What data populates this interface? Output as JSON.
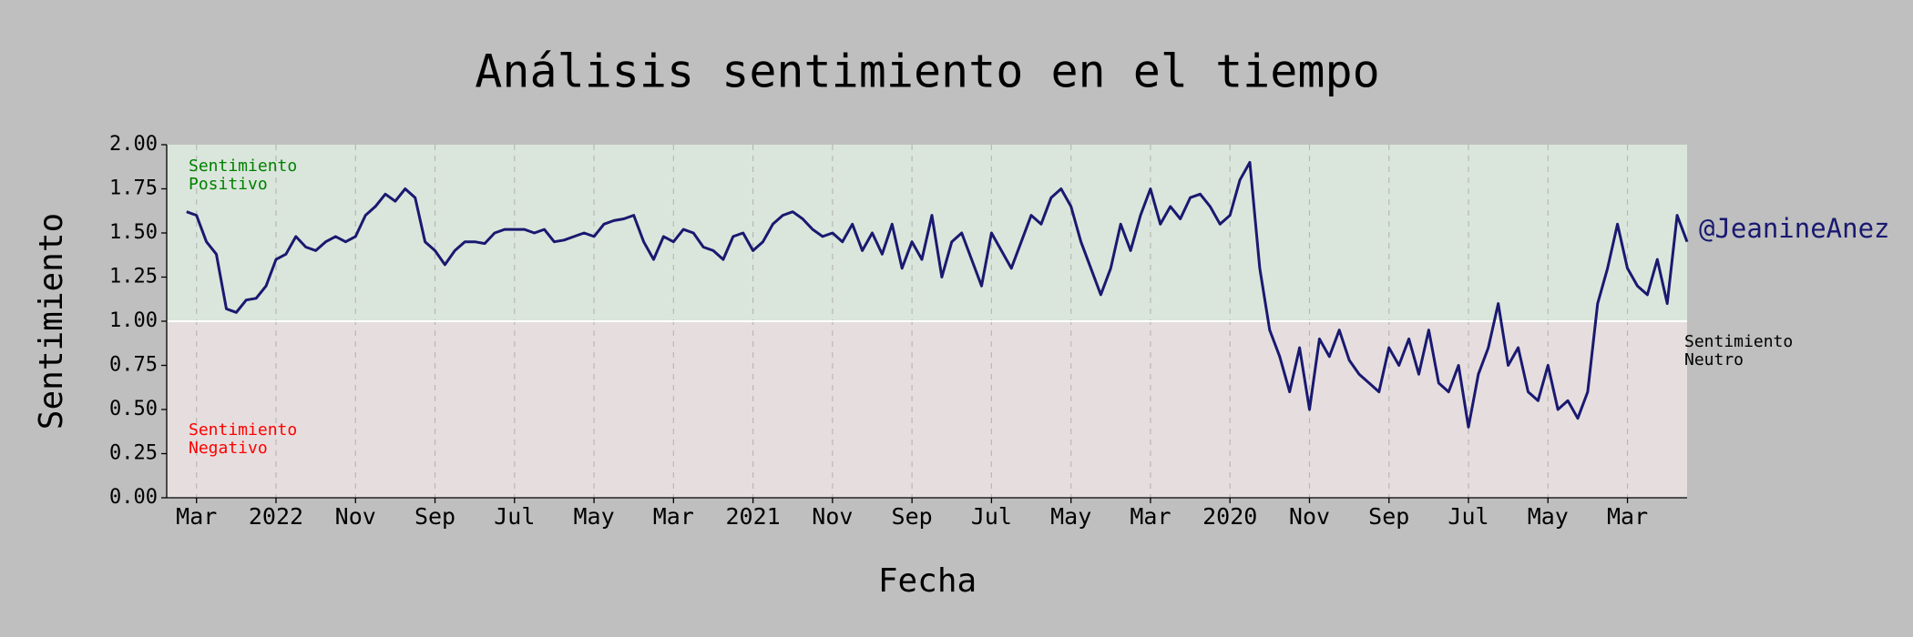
{
  "chart_data": {
    "type": "line",
    "title": "Análisis sentimiento en el tiempo",
    "xlabel": "Fecha",
    "ylabel": "Sentimiento",
    "categories": [
      null,
      null,
      null,
      "Mar",
      null,
      null,
      null,
      null,
      null,
      null,
      null,
      "2022",
      null,
      null,
      null,
      null,
      null,
      null,
      null,
      "Nov",
      null,
      null,
      null,
      null,
      null,
      null,
      null,
      "Sep",
      null,
      null,
      null,
      null,
      null,
      null,
      null,
      "Jul",
      null,
      null,
      null,
      null,
      null,
      null,
      null,
      "May",
      null,
      null,
      null,
      null,
      null,
      null,
      null,
      "Mar",
      null,
      null,
      null,
      null,
      null,
      null,
      null,
      "2021",
      null,
      null,
      null,
      null,
      null,
      null,
      null,
      "Nov",
      null,
      null,
      null,
      null,
      null,
      null,
      null,
      "Sep",
      null,
      null,
      null,
      null,
      null,
      null,
      null,
      "Jul",
      null,
      null,
      null,
      null,
      null,
      null,
      null,
      "May",
      null,
      null,
      null,
      null,
      null,
      null,
      null,
      "Mar",
      null,
      null,
      null,
      null,
      null,
      null,
      null,
      "2020",
      null,
      null,
      null,
      null,
      null,
      null,
      null,
      "Nov",
      null,
      null,
      null,
      null,
      null,
      null,
      null,
      "Sep",
      null,
      null,
      null,
      null,
      null,
      null,
      null,
      "Jul",
      null,
      null,
      null,
      null,
      null,
      null,
      null,
      "May",
      null,
      null,
      null,
      null,
      null,
      null,
      null,
      "Mar",
      null,
      null,
      null,
      null,
      null,
      null
    ],
    "series": [
      {
        "name": "@JeanineAnez",
        "color": "#191970",
        "values": [
          null,
          null,
          1.62,
          1.6,
          1.45,
          1.38,
          1.07,
          1.05,
          1.12,
          1.13,
          1.2,
          1.35,
          1.38,
          1.48,
          1.42,
          1.4,
          1.45,
          1.48,
          1.45,
          1.48,
          1.6,
          1.65,
          1.72,
          1.68,
          1.75,
          1.7,
          1.45,
          1.4,
          1.32,
          1.4,
          1.45,
          1.45,
          1.44,
          1.5,
          1.52,
          1.52,
          1.52,
          1.5,
          1.52,
          1.45,
          1.46,
          1.48,
          1.5,
          1.48,
          1.55,
          1.57,
          1.58,
          1.6,
          1.45,
          1.35,
          1.48,
          1.45,
          1.52,
          1.5,
          1.42,
          1.4,
          1.35,
          1.48,
          1.5,
          1.4,
          1.45,
          1.55,
          1.6,
          1.62,
          1.58,
          1.52,
          1.48,
          1.5,
          1.45,
          1.55,
          1.4,
          1.5,
          1.38,
          1.55,
          1.3,
          1.45,
          1.35,
          1.6,
          1.25,
          1.45,
          1.5,
          1.35,
          1.2,
          1.5,
          1.4,
          1.3,
          1.45,
          1.6,
          1.55,
          1.7,
          1.75,
          1.65,
          1.45,
          1.3,
          1.15,
          1.3,
          1.55,
          1.4,
          1.6,
          1.75,
          1.55,
          1.65,
          1.58,
          1.7,
          1.72,
          1.65,
          1.55,
          1.6,
          1.8,
          1.9,
          1.3,
          0.95,
          0.8,
          0.6,
          0.85,
          0.5,
          0.9,
          0.8,
          0.95,
          0.78,
          0.7,
          0.65,
          0.6,
          0.85,
          0.75,
          0.9,
          0.7,
          0.95,
          0.65,
          0.6,
          0.75,
          0.4,
          0.7,
          0.85,
          1.1,
          0.75,
          0.85,
          0.6,
          0.55,
          0.75,
          0.5,
          0.55,
          0.45,
          0.6,
          1.1,
          1.3,
          1.55,
          1.3,
          1.2,
          1.15,
          1.35,
          1.1,
          1.6,
          1.45
        ]
      }
    ],
    "ylim": [
      0,
      2
    ],
    "yticks": [
      {
        "value": 0,
        "label": "0.00"
      },
      {
        "value": 0.25,
        "label": "0.25"
      },
      {
        "value": 0.5,
        "label": "0.50"
      },
      {
        "value": 0.75,
        "label": "0.75"
      },
      {
        "value": 1,
        "label": "1.00"
      },
      {
        "value": 1.25,
        "label": "1.25"
      },
      {
        "value": 1.5,
        "label": "1.50"
      },
      {
        "value": 1.75,
        "label": "1.75"
      },
      {
        "value": 2,
        "label": "2.00"
      }
    ],
    "threshold": 1,
    "positive_color": "#dae6db",
    "negative_color": "#e6dede",
    "xgrid": true,
    "annotations": [
      {
        "lines": [
          "Sentimiento",
          "Positivo"
        ],
        "color": "#008000"
      },
      {
        "lines": [
          "Sentimiento",
          "Negativo"
        ],
        "color": "#ff0000"
      },
      {
        "lines": [
          "Sentimiento",
          "Neutro"
        ],
        "color": "#000000"
      }
    ]
  }
}
